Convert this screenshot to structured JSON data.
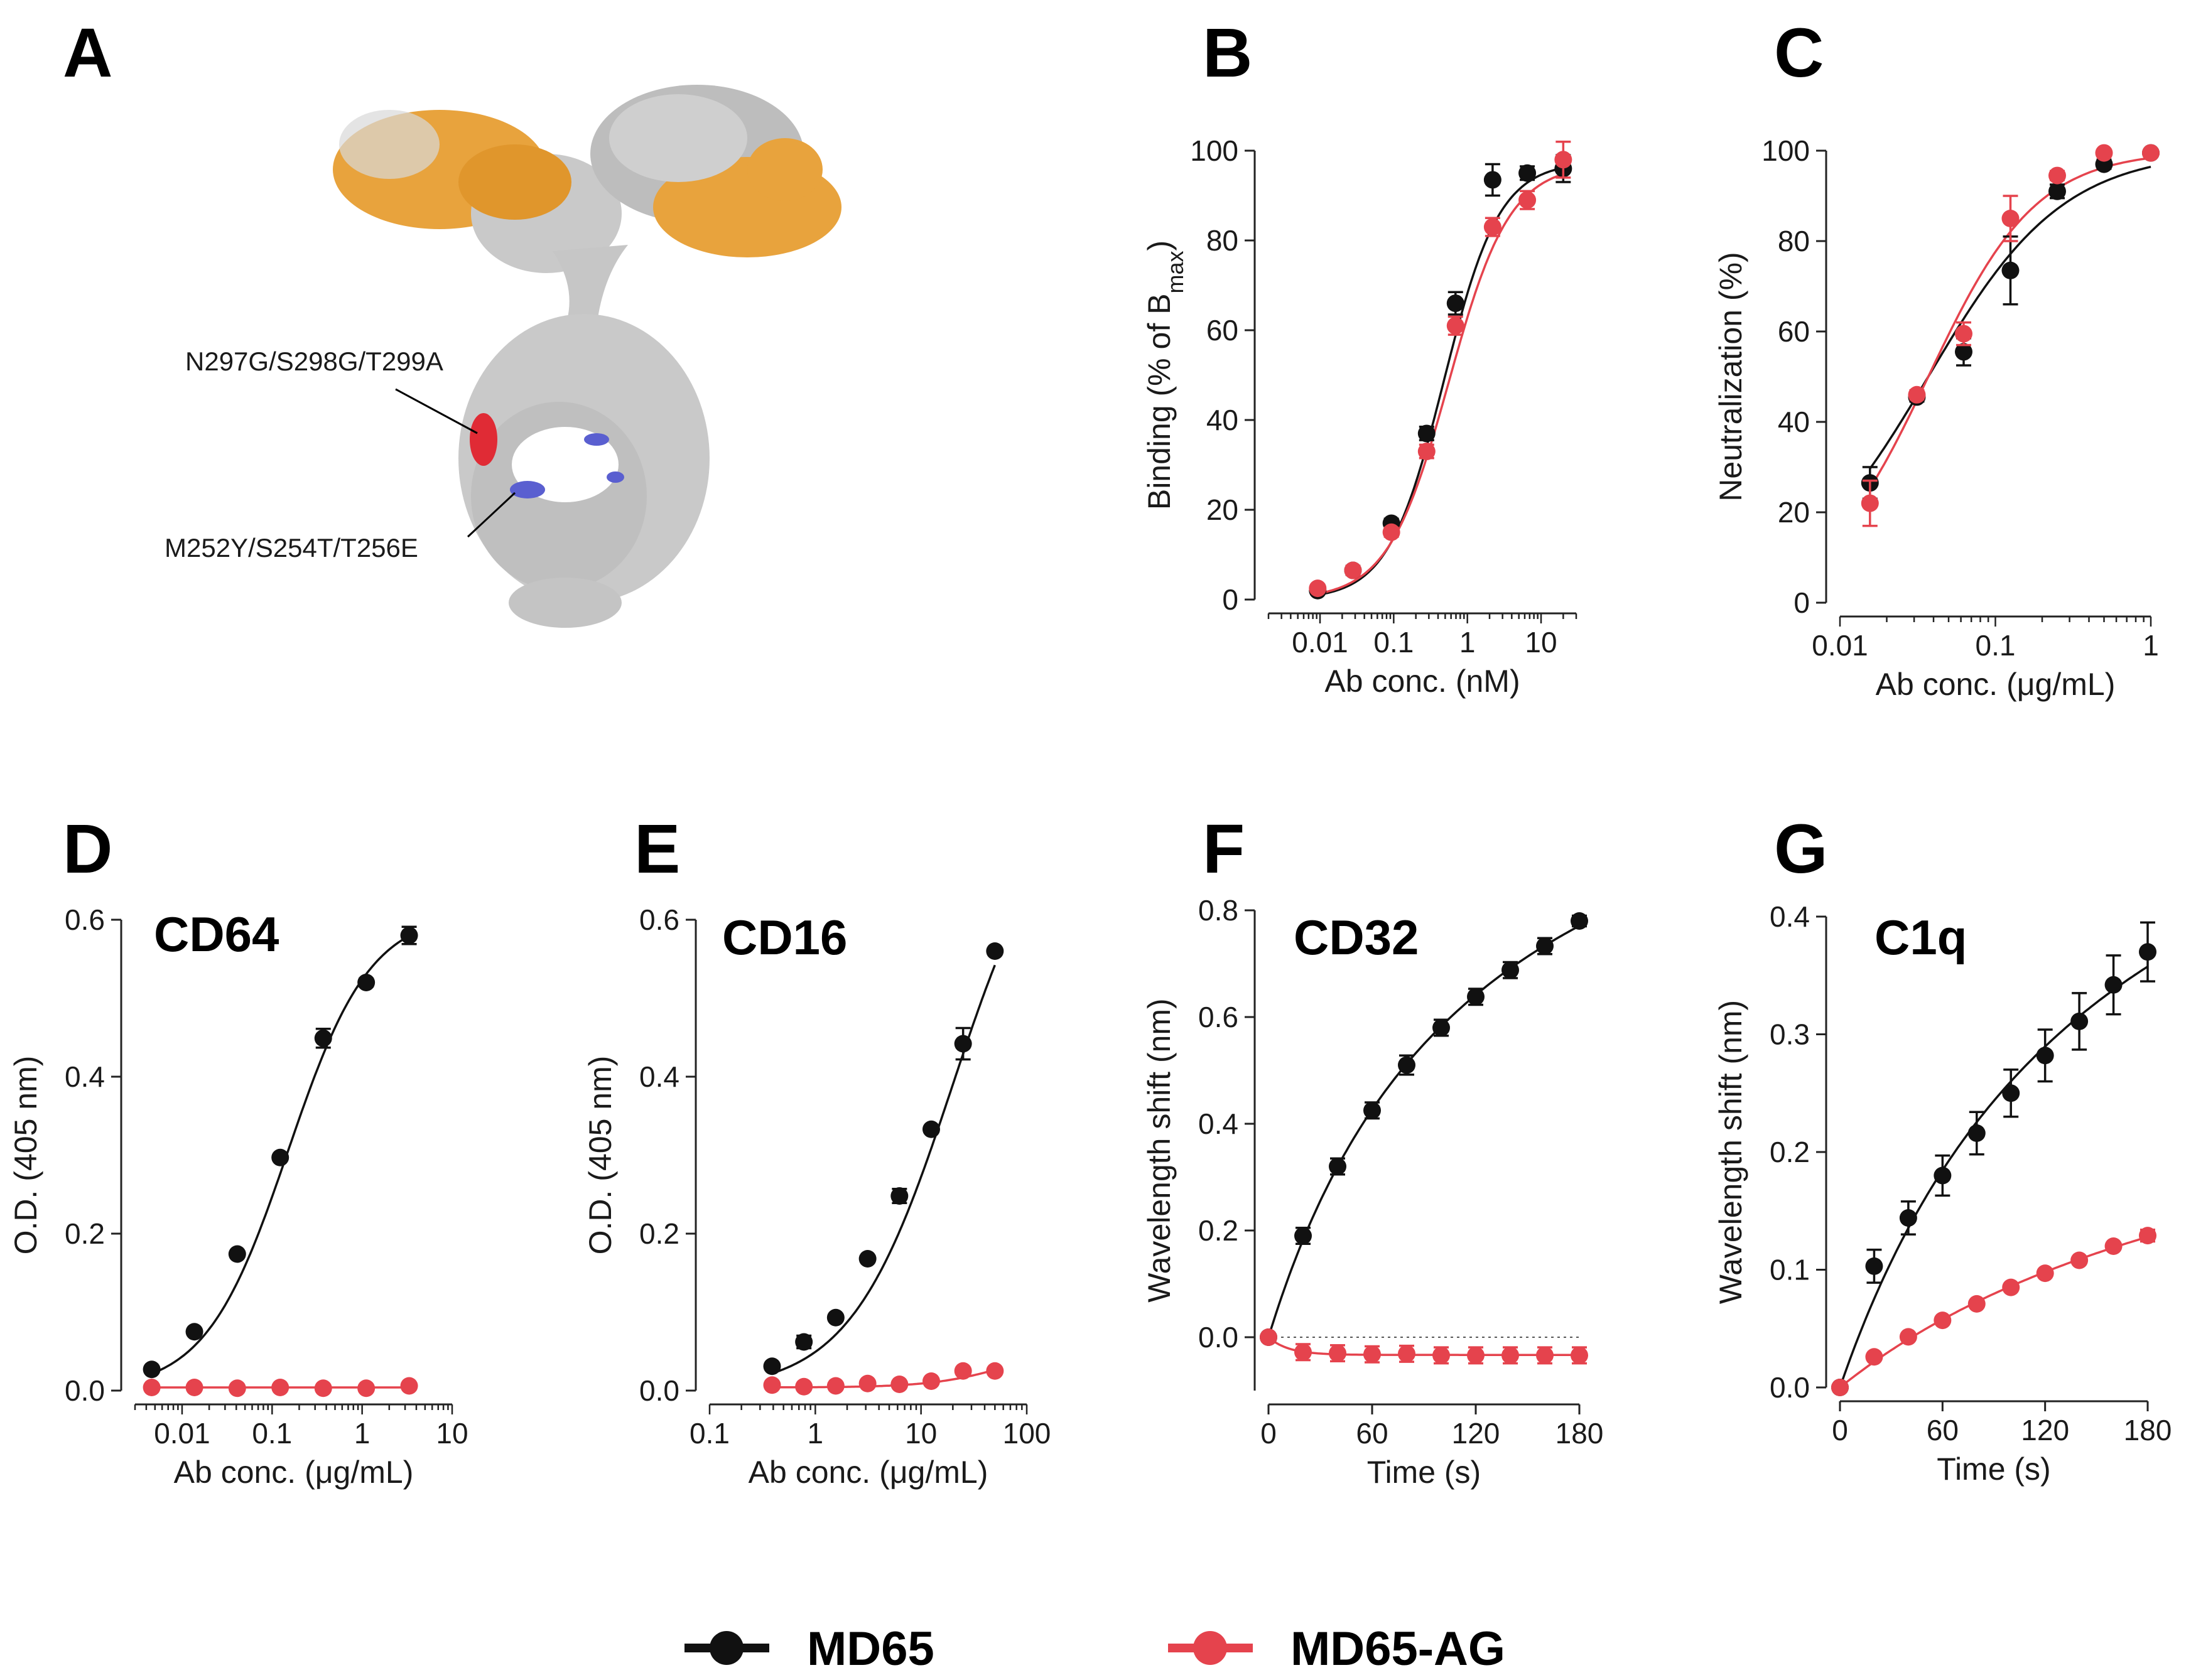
{
  "colors": {
    "md65": "#111111",
    "md65ag": "#e5434d",
    "gold": "#e8a33d",
    "gray": "#c9c9c9",
    "blue": "#5a5fd0",
    "red": "#e02b35"
  },
  "panelA": {
    "letter": "A",
    "annotations": [
      "N297G/S298G/T299A",
      "M252Y/S254T/T256E"
    ]
  },
  "legend": [
    {
      "name": "MD65",
      "color": "#111111"
    },
    {
      "name": "MD65-AG",
      "color": "#e5434d"
    }
  ],
  "chart_data": [
    {
      "id": "B",
      "letter": "B",
      "type": "scatter",
      "title": "",
      "xscale": "log",
      "xlim": [
        0.002,
        30
      ],
      "ylim": [
        0,
        100
      ],
      "xticks": [
        0.01,
        0.1,
        1,
        10
      ],
      "xtick_labels": [
        "0.01",
        "0.1",
        "1",
        "10"
      ],
      "yticks": [
        0,
        20,
        40,
        60,
        80,
        100
      ],
      "ytick_labels": [
        "0",
        "20",
        "40",
        "60",
        "80",
        "100"
      ],
      "xlabel": "Ab conc. (nM)",
      "ylabel_main": "Binding (% of B",
      "ylabel_sub": "max",
      "ylabel_end": ")",
      "series": [
        {
          "name": "MD65",
          "color": "#111111",
          "x": [
            0.0093,
            0.028,
            0.093,
            0.28,
            0.69,
            2.2,
            6.5,
            20
          ],
          "y": [
            2,
            6.5,
            17,
            37,
            66,
            93.5,
            95,
            96
          ],
          "err": [
            0.8,
            1,
            1,
            1.5,
            2.5,
            3.5,
            1.5,
            3
          ]
        },
        {
          "name": "MD65-AG",
          "color": "#e5434d",
          "x": [
            0.0093,
            0.028,
            0.093,
            0.28,
            0.69,
            2.2,
            6.5,
            20
          ],
          "y": [
            2.5,
            6.5,
            15,
            33,
            61,
            83,
            89,
            98
          ],
          "err": [
            0.8,
            1,
            1,
            1.5,
            2,
            2,
            2,
            4
          ]
        }
      ],
      "fits": [
        {
          "name": "MD65",
          "bottom": 0,
          "top": 97.5,
          "ec50": 0.48,
          "hill": 1.15
        },
        {
          "name": "MD65-AG",
          "bottom": 0,
          "top": 97,
          "ec50": 0.56,
          "hill": 1.05
        }
      ]
    },
    {
      "id": "C",
      "letter": "C",
      "type": "scatter",
      "title": "",
      "xscale": "log",
      "xlim": [
        0.01,
        1
      ],
      "ylim": [
        0,
        100
      ],
      "xticks": [
        0.01,
        0.1,
        1
      ],
      "xtick_labels": [
        "0.01",
        "0.1",
        "1"
      ],
      "yticks": [
        0,
        20,
        40,
        60,
        80,
        100
      ],
      "ytick_labels": [
        "0",
        "20",
        "40",
        "60",
        "80",
        "100"
      ],
      "xlabel": "Ab conc. (μg/mL)",
      "ylabel_main": "Neutralization (%)",
      "series": [
        {
          "name": "MD65",
          "color": "#111111",
          "x": [
            0.0156,
            0.03125,
            0.0625,
            0.125,
            0.25,
            0.5,
            1
          ],
          "y": [
            26.5,
            45.5,
            55.5,
            73.5,
            91,
            97,
            99.5
          ],
          "err": [
            3.5,
            1,
            3,
            7.5,
            1.5,
            1,
            0.5
          ]
        },
        {
          "name": "MD65-AG",
          "color": "#e5434d",
          "x": [
            0.0156,
            0.03125,
            0.0625,
            0.125,
            0.25,
            0.5,
            1
          ],
          "y": [
            22,
            46,
            59.5,
            85,
            94.5,
            99.5,
            99.5
          ],
          "err": [
            5,
            1,
            2.5,
            5,
            1,
            0.5,
            0.5
          ]
        }
      ],
      "fits": [
        {
          "name": "MD65",
          "bottom": 0,
          "top": 100,
          "ec50": 0.037,
          "hill": 1.0
        },
        {
          "name": "MD65-AG",
          "bottom": 0,
          "top": 100,
          "ec50": 0.037,
          "hill": 1.25
        }
      ]
    },
    {
      "id": "D",
      "letter": "D",
      "type": "scatter",
      "title": "CD64",
      "xscale": "log",
      "xlim": [
        0.003,
        10
      ],
      "ylim": [
        0,
        0.6
      ],
      "xticks": [
        0.01,
        0.1,
        1,
        10
      ],
      "xtick_labels": [
        "0.01",
        "0.1",
        "1",
        "10"
      ],
      "yticks": [
        0,
        0.2,
        0.4,
        0.6
      ],
      "ytick_labels": [
        "0.0",
        "0.2",
        "0.4",
        "0.6"
      ],
      "xlabel": "Ab conc. (μg/mL)",
      "ylabel_main": "O.D. (405 nm)",
      "series": [
        {
          "name": "MD65",
          "color": "#111111",
          "x": [
            0.0046,
            0.0137,
            0.041,
            0.123,
            0.37,
            1.11,
            3.33
          ],
          "y": [
            0.027,
            0.075,
            0.174,
            0.297,
            0.449,
            0.52,
            0.58
          ],
          "err": [
            0.004,
            0.004,
            0.004,
            0.004,
            0.012,
            0.005,
            0.011
          ]
        },
        {
          "name": "MD65-AG",
          "color": "#e5434d",
          "x": [
            0.0046,
            0.0137,
            0.041,
            0.123,
            0.37,
            1.11,
            3.33
          ],
          "y": [
            0.004,
            0.004,
            0.003,
            0.004,
            0.003,
            0.003,
            0.006
          ],
          "err": [
            0.001,
            0.001,
            0.001,
            0.001,
            0.001,
            0.001,
            0.002
          ]
        }
      ],
      "fits": [
        {
          "name": "MD65",
          "bottom": 0,
          "top": 0.61,
          "ec50": 0.15,
          "hill": 0.95
        },
        {
          "name": "MD65-AG",
          "bottom": 0.004,
          "top": 0.004,
          "ec50": 1,
          "hill": 1
        }
      ]
    },
    {
      "id": "E",
      "letter": "E",
      "type": "scatter",
      "title": "CD16",
      "xscale": "log",
      "xlim": [
        0.1,
        100
      ],
      "ylim": [
        0,
        0.6
      ],
      "xticks": [
        0.1,
        1,
        10,
        100
      ],
      "xtick_labels": [
        "0.1",
        "1",
        "10",
        "100"
      ],
      "yticks": [
        0,
        0.2,
        0.4,
        0.6
      ],
      "ytick_labels": [
        "0.0",
        "0.2",
        "0.4",
        "0.6"
      ],
      "xlabel": "Ab conc. (μg/mL)",
      "ylabel_main": "O.D. (405 nm)",
      "series": [
        {
          "name": "MD65",
          "color": "#111111",
          "x": [
            0.39,
            0.78,
            1.56,
            3.125,
            6.25,
            12.5,
            25,
            50
          ],
          "y": [
            0.031,
            0.062,
            0.093,
            0.168,
            0.248,
            0.333,
            0.442,
            0.56
          ],
          "err": [
            0.004,
            0.008,
            0.004,
            0.004,
            0.009,
            0.004,
            0.02,
            0.004
          ]
        },
        {
          "name": "MD65-AG",
          "color": "#e5434d",
          "x": [
            0.39,
            0.78,
            1.56,
            3.125,
            6.25,
            12.5,
            25,
            50
          ],
          "y": [
            0.007,
            0.005,
            0.006,
            0.009,
            0.008,
            0.012,
            0.025,
            0.025
          ],
          "err": [
            0.002,
            0.002,
            0.002,
            0.002,
            0.002,
            0.003,
            0.004,
            0.003
          ]
        }
      ],
      "fits": [
        {
          "name": "MD65",
          "bottom": 0,
          "top": 0.78,
          "ec50": 20,
          "hill": 0.9
        },
        {
          "name": "MD65-AG",
          "bottom": 0.004,
          "top": 0.06,
          "ec50": 70,
          "hill": 1.2
        }
      ]
    },
    {
      "id": "F",
      "letter": "F",
      "type": "scatter",
      "title": "CD32",
      "xscale": "linear",
      "xlim": [
        0,
        180
      ],
      "ylim": [
        -0.1,
        0.8
      ],
      "xticks": [
        0,
        60,
        120,
        180
      ],
      "xtick_labels": [
        "0",
        "60",
        "120",
        "180"
      ],
      "yticks": [
        0,
        0.2,
        0.4,
        0.6,
        0.8
      ],
      "ytick_labels": [
        "0.0",
        "0.2",
        "0.4",
        "0.6",
        "0.8"
      ],
      "xlabel": "Time (s)",
      "ylabel_main": "Wavelength shift (nm)",
      "zero_line": true,
      "series": [
        {
          "name": "MD65",
          "color": "#111111",
          "x": [
            0,
            20,
            40,
            60,
            80,
            100,
            120,
            140,
            160,
            180
          ],
          "y": [
            0,
            0.19,
            0.32,
            0.425,
            0.51,
            0.58,
            0.638,
            0.688,
            0.733,
            0.78
          ],
          "err": [
            0,
            0.015,
            0.015,
            0.015,
            0.018,
            0.015,
            0.015,
            0.015,
            0.015,
            0.01
          ]
        },
        {
          "name": "MD65-AG",
          "color": "#e5434d",
          "x": [
            0,
            20,
            40,
            60,
            80,
            100,
            120,
            140,
            160,
            180
          ],
          "y": [
            0,
            -0.028,
            -0.03,
            -0.032,
            -0.031,
            -0.034,
            -0.034,
            -0.034,
            -0.034,
            -0.034
          ],
          "err": [
            0,
            0.015,
            0.015,
            0.015,
            0.015,
            0.015,
            0.015,
            0.015,
            0.015,
            0.015
          ]
        }
      ]
    },
    {
      "id": "G",
      "letter": "G",
      "type": "scatter",
      "title": "C1q",
      "xscale": "linear",
      "xlim": [
        0,
        180
      ],
      "ylim": [
        0,
        0.4
      ],
      "xticks": [
        0,
        60,
        120,
        180
      ],
      "xtick_labels": [
        "0",
        "60",
        "120",
        "180"
      ],
      "yticks": [
        0,
        0.1,
        0.2,
        0.3,
        0.4
      ],
      "ytick_labels": [
        "0.0",
        "0.1",
        "0.2",
        "0.3",
        "0.4"
      ],
      "xlabel": "Time (s)",
      "ylabel_main": "Wavelength shift (nm)",
      "series": [
        {
          "name": "MD65",
          "color": "#111111",
          "x": [
            0,
            20,
            40,
            60,
            80,
            100,
            120,
            140,
            160,
            180
          ],
          "y": [
            0,
            0.103,
            0.144,
            0.18,
            0.216,
            0.25,
            0.282,
            0.311,
            0.342,
            0.37
          ],
          "err": [
            0,
            0.014,
            0.014,
            0.017,
            0.018,
            0.02,
            0.022,
            0.024,
            0.025,
            0.025
          ]
        },
        {
          "name": "MD65-AG",
          "color": "#e5434d",
          "x": [
            0,
            20,
            40,
            60,
            80,
            100,
            120,
            140,
            160,
            180
          ],
          "y": [
            0,
            0.026,
            0.043,
            0.057,
            0.071,
            0.085,
            0.097,
            0.108,
            0.12,
            0.129
          ],
          "err": [
            0,
            0.002,
            0.002,
            0.002,
            0.002,
            0.002,
            0.002,
            0.002,
            0.003,
            0.005
          ]
        }
      ]
    }
  ]
}
